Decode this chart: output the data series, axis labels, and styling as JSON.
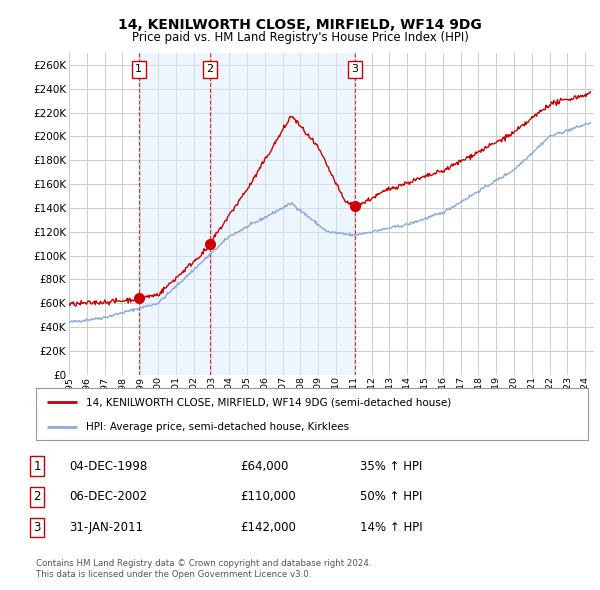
{
  "title": "14, KENILWORTH CLOSE, MIRFIELD, WF14 9DG",
  "subtitle": "Price paid vs. HM Land Registry's House Price Index (HPI)",
  "ylabel_ticks": [
    0,
    20000,
    40000,
    60000,
    80000,
    100000,
    120000,
    140000,
    160000,
    180000,
    200000,
    220000,
    240000,
    260000
  ],
  "ylim": [
    0,
    270000
  ],
  "xlim_start": 1995.0,
  "xlim_end": 2024.5,
  "sale_dates": [
    1998.92,
    2002.92,
    2011.08
  ],
  "sale_prices": [
    64000,
    110000,
    142000
  ],
  "sale_labels": [
    "1",
    "2",
    "3"
  ],
  "sale_date_strings": [
    "04-DEC-1998",
    "06-DEC-2002",
    "31-JAN-2011"
  ],
  "sale_price_strings": [
    "£64,000",
    "£110,000",
    "£142,000"
  ],
  "sale_hpi_strings": [
    "35% ↑ HPI",
    "50% ↑ HPI",
    "14% ↑ HPI"
  ],
  "property_line_color": "#cc0000",
  "hpi_line_color": "#88aadd",
  "marker_color": "#cc0000",
  "vline_color": "#cc0000",
  "shade_color": "#ddeeff",
  "background_color": "#ffffff",
  "grid_color": "#cccccc",
  "legend_label_property": "14, KENILWORTH CLOSE, MIRFIELD, WF14 9DG (semi-detached house)",
  "legend_label_hpi": "HPI: Average price, semi-detached house, Kirklees",
  "footnote1": "Contains HM Land Registry data © Crown copyright and database right 2024.",
  "footnote2": "This data is licensed under the Open Government Licence v3.0."
}
